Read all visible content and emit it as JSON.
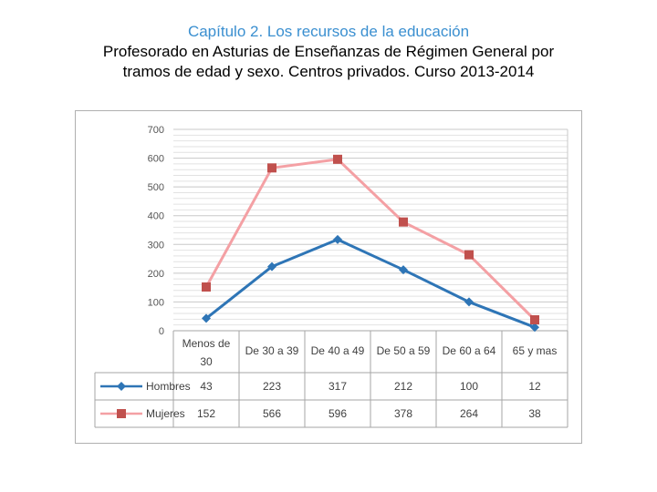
{
  "header": {
    "chapter": "Capítulo 2. Los recursos de la educación",
    "title_line1": "Profesorado en Asturias de Enseñanzas de Régimen General por",
    "title_line2": "tramos de edad y sexo. Centros privados. Curso 2013-2014"
  },
  "chart_data": {
    "type": "line",
    "categories": [
      [
        "Menos de",
        "30"
      ],
      [
        "De 30 a 39"
      ],
      [
        "De 40 a 49"
      ],
      [
        "De 50 a 59"
      ],
      [
        "De 60 a 64"
      ],
      [
        "65 y mas"
      ]
    ],
    "series": [
      {
        "name": "Hombres",
        "values": [
          43,
          223,
          317,
          212,
          100,
          12
        ],
        "color": "#2e75b6",
        "marker": "diamond"
      },
      {
        "name": "Mujeres",
        "values": [
          152,
          566,
          596,
          378,
          264,
          38
        ],
        "color": "#f4a0a4",
        "marker_color": "#c0504d",
        "marker": "square"
      }
    ],
    "ylim": [
      0,
      700
    ],
    "yticks": [
      "0",
      "100",
      "200",
      "300",
      "400",
      "500",
      "600",
      "700"
    ],
    "legend": "data-table",
    "grid": true
  }
}
